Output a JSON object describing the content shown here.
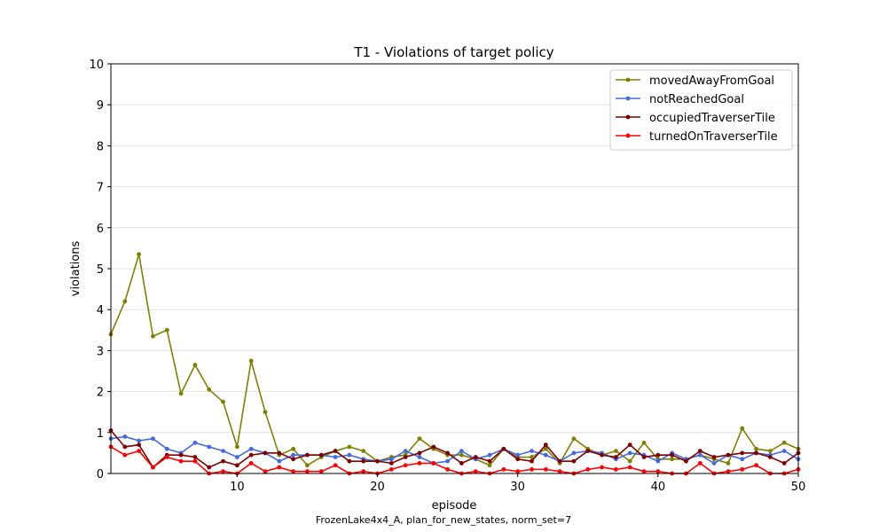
{
  "chart_data": {
    "type": "line",
    "title": "T1 - Violations of target policy",
    "xlabel": "episode",
    "ylabel": "violations",
    "caption": "FrozenLake4x4_A, plan_for_new_states, norm_set=7",
    "xlim": [
      1,
      50
    ],
    "ylim": [
      0,
      10
    ],
    "xticks": [
      10,
      20,
      30,
      40,
      50
    ],
    "yticks": [
      0,
      1,
      2,
      3,
      4,
      5,
      6,
      7,
      8,
      9,
      10
    ],
    "grid": "horizontal",
    "legend_position": "top-right",
    "x": [
      1,
      2,
      3,
      4,
      5,
      6,
      7,
      8,
      9,
      10,
      11,
      12,
      13,
      14,
      15,
      16,
      17,
      18,
      19,
      20,
      21,
      22,
      23,
      24,
      25,
      26,
      27,
      28,
      29,
      30,
      31,
      32,
      33,
      34,
      35,
      36,
      37,
      38,
      39,
      40,
      41,
      42,
      43,
      44,
      45,
      46,
      47,
      48,
      49,
      50
    ],
    "series": [
      {
        "name": "movedAwayFromGoal",
        "color": "#808000",
        "values": [
          3.4,
          4.2,
          5.35,
          3.35,
          3.5,
          1.95,
          2.65,
          2.05,
          1.75,
          0.65,
          2.75,
          1.5,
          0.45,
          0.6,
          0.2,
          0.4,
          0.55,
          0.65,
          0.55,
          0.3,
          0.4,
          0.45,
          0.85,
          0.6,
          0.45,
          0.45,
          0.35,
          0.2,
          0.6,
          0.4,
          0.4,
          0.6,
          0.25,
          0.85,
          0.6,
          0.45,
          0.55,
          0.3,
          0.75,
          0.35,
          0.35,
          0.35,
          0.45,
          0.35,
          0.25,
          1.1,
          0.6,
          0.55,
          0.75,
          0.6
        ]
      },
      {
        "name": "notReachedGoal",
        "color": "#4169E1",
        "values": [
          0.85,
          0.9,
          0.8,
          0.85,
          0.6,
          0.5,
          0.75,
          0.65,
          0.55,
          0.4,
          0.6,
          0.5,
          0.3,
          0.45,
          0.45,
          0.45,
          0.4,
          0.45,
          0.35,
          0.3,
          0.35,
          0.55,
          0.4,
          0.25,
          0.3,
          0.55,
          0.35,
          0.45,
          0.6,
          0.45,
          0.55,
          0.45,
          0.3,
          0.5,
          0.55,
          0.5,
          0.35,
          0.5,
          0.45,
          0.3,
          0.5,
          0.35,
          0.45,
          0.25,
          0.45,
          0.35,
          0.5,
          0.45,
          0.55,
          0.35
        ]
      },
      {
        "name": "occupiedTraverserTile",
        "color": "#800000",
        "values": [
          1.05,
          0.65,
          0.7,
          0.15,
          0.45,
          0.45,
          0.4,
          0.15,
          0.3,
          0.2,
          0.45,
          0.5,
          0.5,
          0.35,
          0.45,
          0.45,
          0.55,
          0.3,
          0.3,
          0.3,
          0.25,
          0.4,
          0.5,
          0.65,
          0.5,
          0.25,
          0.4,
          0.3,
          0.6,
          0.35,
          0.3,
          0.7,
          0.3,
          0.3,
          0.55,
          0.45,
          0.4,
          0.7,
          0.4,
          0.45,
          0.45,
          0.3,
          0.55,
          0.4,
          0.45,
          0.5,
          0.5,
          0.4,
          0.25,
          0.5
        ]
      },
      {
        "name": "turnedOnTraverserTile",
        "color": "#FF0000",
        "values": [
          0.65,
          0.45,
          0.55,
          0.15,
          0.4,
          0.3,
          0.3,
          0.0,
          0.05,
          0.0,
          0.25,
          0.05,
          0.15,
          0.05,
          0.05,
          0.05,
          0.2,
          0.0,
          0.05,
          0.0,
          0.1,
          0.2,
          0.25,
          0.25,
          0.1,
          0.0,
          0.05,
          0.0,
          0.1,
          0.05,
          0.1,
          0.1,
          0.05,
          0.0,
          0.1,
          0.15,
          0.1,
          0.15,
          0.05,
          0.05,
          0.0,
          0.0,
          0.25,
          0.0,
          0.05,
          0.1,
          0.2,
          0.0,
          0.0,
          0.1
        ]
      }
    ]
  }
}
